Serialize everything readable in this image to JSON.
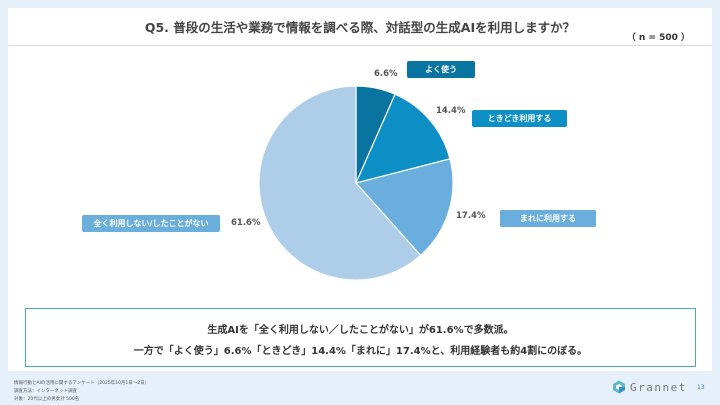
{
  "header": {
    "title": "Q5. 普段の生活や業務で情報を調べる際、対話型の生成AIを利用しますか？",
    "sample": "（ n = 500 ）"
  },
  "chart_data": {
    "type": "pie",
    "title": "Q5. 普段の生活や業務で情報を調べる際、対話型の生成AIを利用しますか？",
    "start": "top",
    "direction": "clockwise",
    "slices": [
      {
        "label": "よく使う",
        "value": 6.6,
        "value_label": "6.6%",
        "color": "#0a74a0"
      },
      {
        "label": "ときどき利用する",
        "value": 14.4,
        "value_label": "14.4%",
        "color": "#0b8fc4"
      },
      {
        "label": "まれに利用する",
        "value": 17.4,
        "value_label": "17.4%",
        "color": "#69aedc"
      },
      {
        "label": "全く利用しない/したことがない",
        "value": 61.6,
        "value_label": "61.6%",
        "color": "#aecde8"
      }
    ]
  },
  "summary": {
    "line1": "生成AIを「全く利用しない／したことがない」が61.6%で多数派。",
    "line2": "一方で「よく使う」6.6%「ときどき」14.4%「まれに」17.4%と、利用経験者も約4割にのぼる。"
  },
  "footer": {
    "note1": "情報行動とAIの活用に関するアンケート（2025年10月1日～2日）",
    "note2": "調査方法：インターネット調査",
    "note3": "対象：20代以上の男女計 500名",
    "brand": "Grannet",
    "page": "13"
  }
}
